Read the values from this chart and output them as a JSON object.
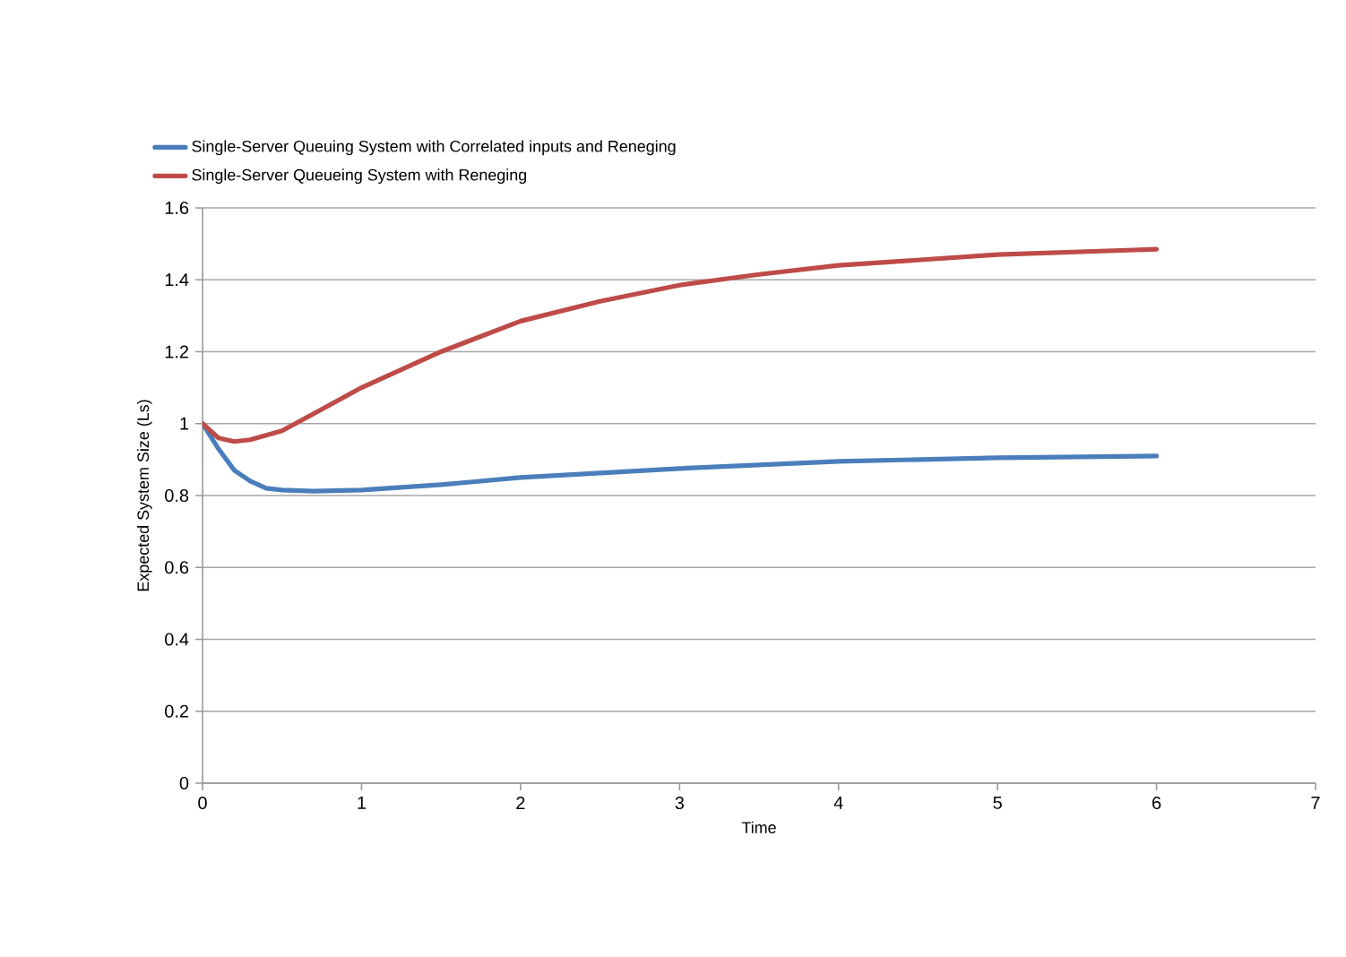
{
  "chart_data": {
    "type": "line",
    "xlabel": "Time",
    "ylabel": "Expected System Size (Ls)",
    "xlim": [
      0,
      7
    ],
    "xticks": [
      0,
      1,
      2,
      3,
      4,
      5,
      6,
      7
    ],
    "ylim": [
      0,
      1.6
    ],
    "yticks": [
      0,
      0.2,
      0.4,
      0.6,
      0.8,
      1,
      1.2,
      1.4,
      1.6
    ],
    "grid": "y",
    "legend": "top",
    "marker": "none",
    "line_style": "solid",
    "series": [
      {
        "name": "Single-Server Queuing System with Correlated inputs and Reneging",
        "color": "#4a7ebb",
        "x": [
          0,
          0.1,
          0.2,
          0.3,
          0.4,
          0.5,
          0.7,
          1,
          1.5,
          2,
          3,
          4,
          5,
          6
        ],
        "values": [
          1.0,
          0.93,
          0.87,
          0.84,
          0.82,
          0.815,
          0.812,
          0.815,
          0.83,
          0.85,
          0.875,
          0.895,
          0.905,
          0.91
        ]
      },
      {
        "name": "Single-Server Queueing System with Reneging",
        "color": "#be4b48",
        "x": [
          0,
          0.1,
          0.2,
          0.3,
          0.5,
          0.75,
          1,
          1.5,
          2,
          2.5,
          3,
          3.5,
          4,
          5,
          6
        ],
        "values": [
          1.0,
          0.96,
          0.95,
          0.955,
          0.98,
          1.04,
          1.1,
          1.2,
          1.285,
          1.34,
          1.385,
          1.415,
          1.44,
          1.47,
          1.485
        ]
      }
    ]
  }
}
